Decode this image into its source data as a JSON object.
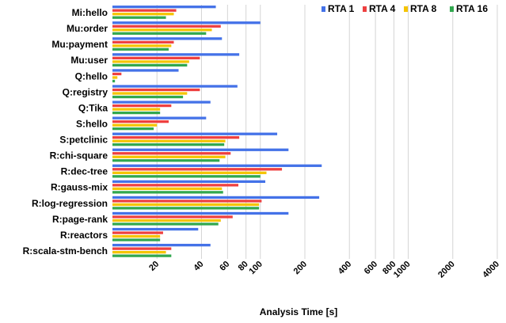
{
  "chart_data": {
    "type": "bar",
    "orientation": "horizontal",
    "xscale": "log",
    "xlim": [
      10,
      4000
    ],
    "xlabel": "Analysis Time [s]",
    "ylabel": "",
    "title": "",
    "grid": "vertical",
    "legend_position": "top-right",
    "categories": [
      "Mi:hello",
      "Mu:order",
      "Mu:payment",
      "Mu:user",
      "Q:hello",
      "Q:registry",
      "Q:Tika",
      "S:hello",
      "S:petclinic",
      "R:chi-square",
      "R:dec-tree",
      "R:gauss-mix",
      "R:log-regression",
      "R:page-rank",
      "R:reactors",
      "R:scala-stm-bench"
    ],
    "xticks": [
      20,
      40,
      60,
      80,
      100,
      200,
      400,
      600,
      800,
      1000,
      2000,
      4000
    ],
    "series": [
      {
        "name": "RTA 1",
        "color": "#4472e8",
        "values": [
          50,
          100,
          55,
          72,
          28,
          70,
          46,
          43,
          130,
          155,
          260,
          108,
          250,
          155,
          38,
          46
        ]
      },
      {
        "name": "RTA 4",
        "color": "#ee4040",
        "values": [
          27,
          54,
          26,
          39,
          11.5,
          39,
          25,
          24,
          72,
          63,
          140,
          71,
          102,
          65,
          22,
          25
        ]
      },
      {
        "name": "RTA 8",
        "color": "#f5c400",
        "values": [
          26,
          47,
          25,
          33,
          10.8,
          32,
          21,
          20,
          58,
          58,
          110,
          55,
          98,
          54,
          21,
          23
        ]
      },
      {
        "name": "RTA 16",
        "color": "#31a84f",
        "values": [
          23,
          43,
          24,
          32,
          10.4,
          30,
          21,
          19,
          57,
          53,
          100,
          56,
          98,
          52,
          21,
          25
        ]
      }
    ]
  }
}
